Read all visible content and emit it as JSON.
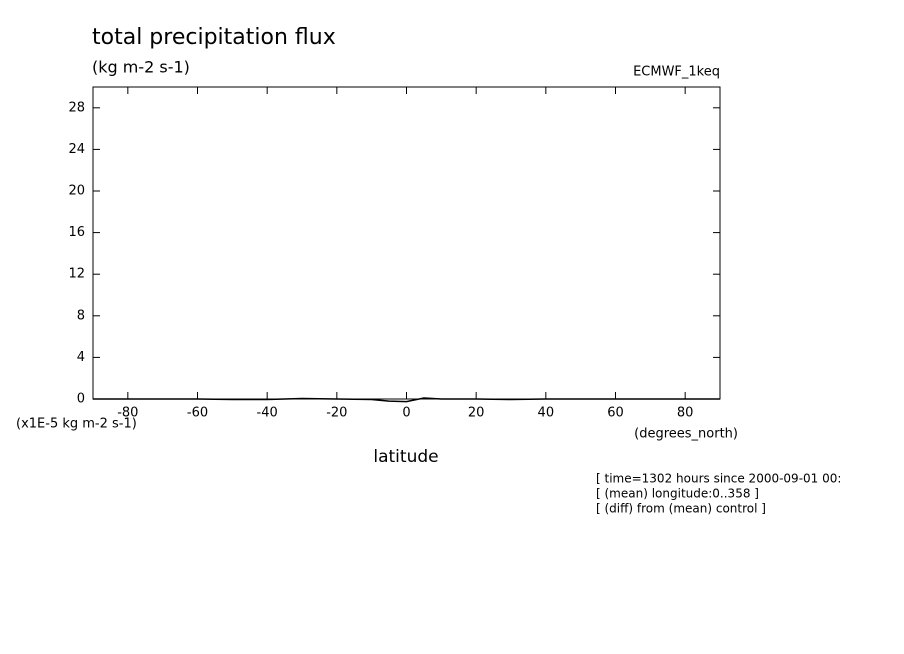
{
  "chart_data": {
    "type": "line",
    "title": "total precipitation flux",
    "subtitle": "(kg m-2 s-1)",
    "dataset": "ECMWF_1keq",
    "y_units": "(x1E-5 kg m-2 s-1)",
    "x_label": "latitude",
    "x_units": "(degrees_north)",
    "notes": [
      "[ time=1302 hours since 2000-09-01 00:",
      "[ (mean) longitude:0..358 ]",
      "[ (diff) from (mean) control ]"
    ],
    "x": [
      -90,
      -80,
      -70,
      -60,
      -50,
      -40,
      -30,
      -20,
      -10,
      -5,
      0,
      5,
      10,
      20,
      30,
      40,
      50,
      60,
      70,
      80,
      90
    ],
    "series": [
      {
        "color": "#000000",
        "values": [
          0,
          0,
          0,
          0,
          -0.05,
          -0.05,
          0.05,
          0,
          -0.05,
          -0.2,
          -0.25,
          0.1,
          0,
          0,
          -0.05,
          0,
          0,
          0,
          0,
          0,
          0
        ]
      }
    ],
    "xlim": [
      -90,
      90
    ],
    "xticks": [
      -80,
      -60,
      -40,
      -20,
      0,
      20,
      40,
      60,
      80
    ],
    "ylim": [
      0,
      30
    ],
    "yticks": [
      0,
      4,
      8,
      12,
      16,
      20,
      24,
      28
    ]
  }
}
